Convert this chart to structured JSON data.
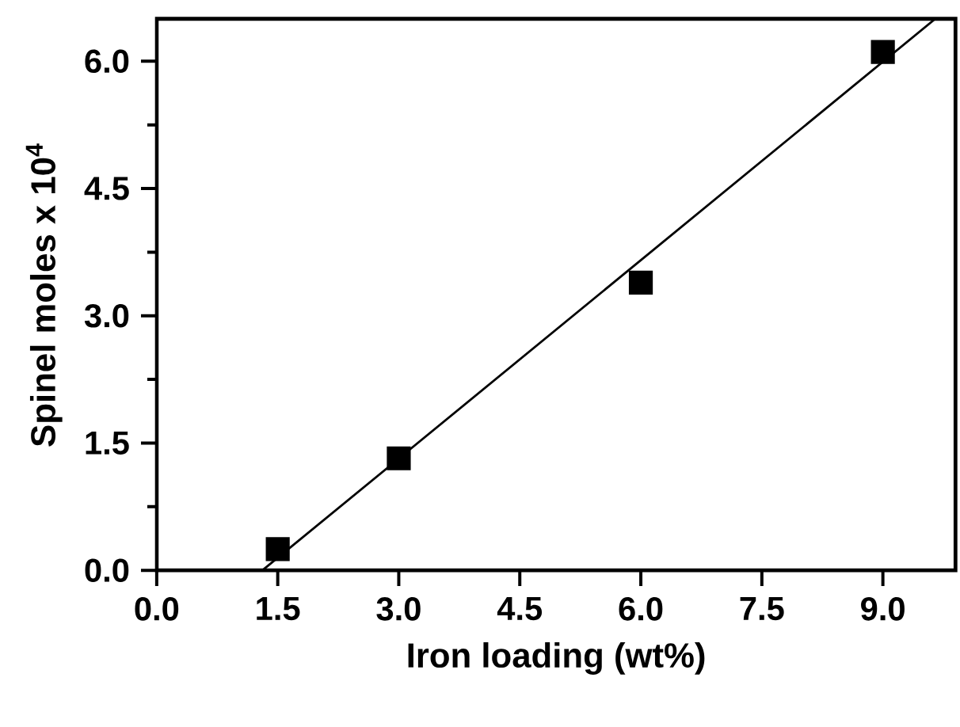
{
  "chart_data": {
    "type": "scatter",
    "xlabel": "Iron loading (wt%)",
    "ylabel": "Spinel moles x 10$^{4}$",
    "xlim": [
      0,
      9.9
    ],
    "ylim": [
      0,
      6.5
    ],
    "xticks": [
      {
        "value": 0,
        "label": "0.0"
      },
      1.5,
      {
        "value": 3,
        "label": "3.0"
      },
      4.5,
      {
        "value": 6,
        "label": "6.0"
      },
      7.5,
      {
        "value": 9,
        "label": "9.0"
      }
    ],
    "yticks": [
      {
        "value": 0,
        "label": "0.0"
      },
      1.5,
      {
        "value": 3,
        "label": "3.0"
      },
      4.5,
      {
        "value": 6,
        "label": "6.0"
      }
    ],
    "series": [
      {
        "color": "#000000",
        "marker": "square",
        "x": [
          1.5,
          3.0,
          6.0,
          9.0
        ],
        "values": [
          0.25,
          1.32,
          3.39,
          6.11
        ]
      },
      {
        "type": "line",
        "color": "#000000",
        "marker": "none",
        "x": [
          1.31,
          9.65
        ],
        "values": [
          0,
          6.5
        ]
      }
    ]
  }
}
